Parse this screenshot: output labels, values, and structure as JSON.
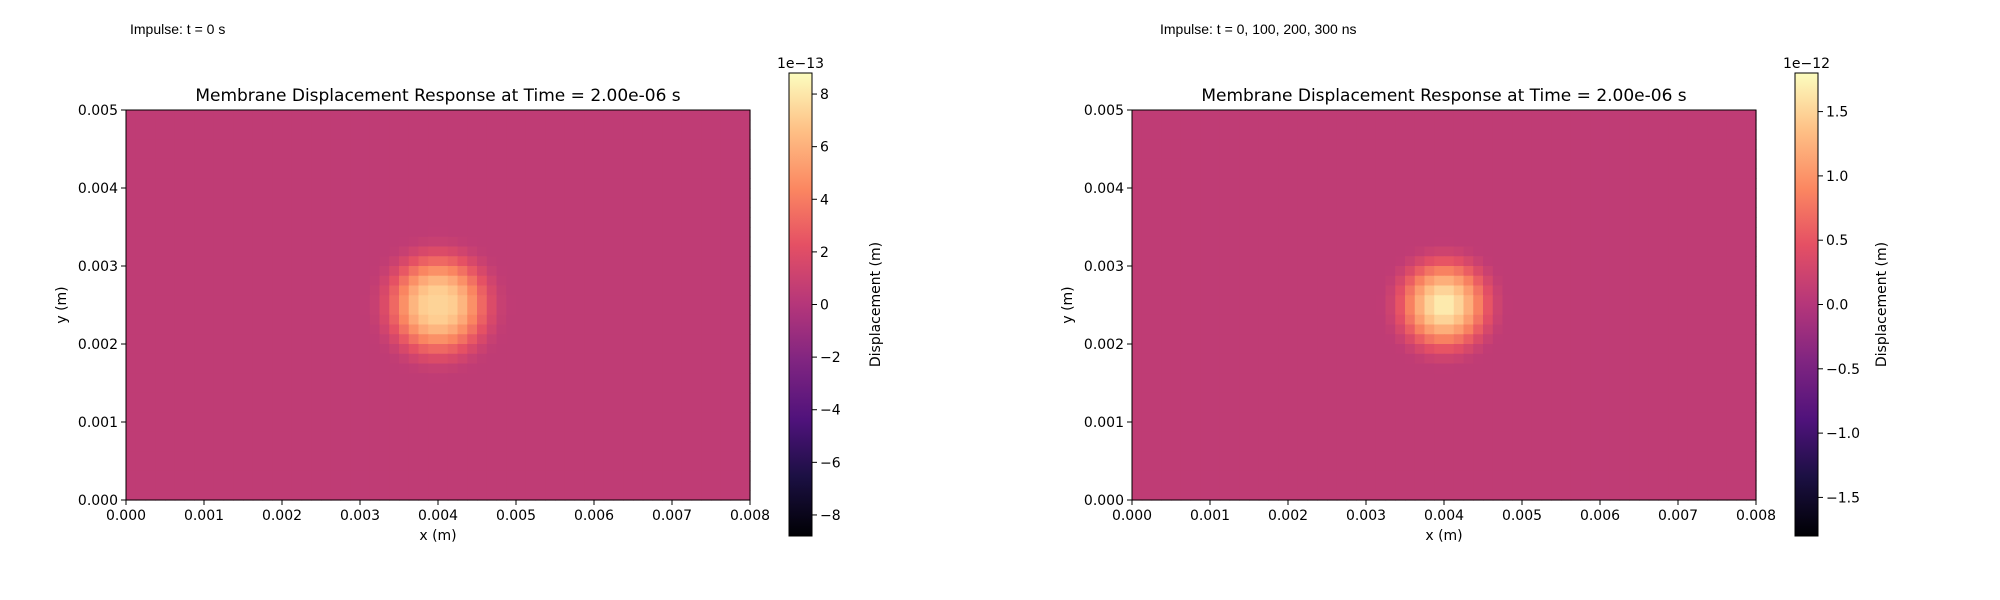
{
  "panels": [
    {
      "label": "Impulse: t = 0 s"
    },
    {
      "label": "Impulse: t = 0, 100, 200, 300 ns"
    }
  ],
  "chart_data": [
    {
      "type": "heatmap",
      "title": "Membrane Displacement Response at Time = 2.00e-06 s",
      "xlabel": "x (m)",
      "ylabel": "y (m)",
      "xlim": [
        0,
        0.008
      ],
      "ylim": [
        0,
        0.005
      ],
      "x_ticks": [
        "0.000",
        "0.001",
        "0.002",
        "0.003",
        "0.004",
        "0.005",
        "0.006",
        "0.007",
        "0.008"
      ],
      "y_ticks": [
        "0.000",
        "0.001",
        "0.002",
        "0.003",
        "0.004",
        "0.005"
      ],
      "grid": false,
      "colormap": "magma",
      "colorbar": {
        "label": "Displacement (m)",
        "offset_label": "1e−13",
        "range": [
          -8.8,
          8.8
        ],
        "ticks": [
          -8,
          -6,
          -4,
          -2,
          0,
          2,
          4,
          6,
          8
        ],
        "tick_labels": [
          "−8",
          "−6",
          "−4",
          "−2",
          "0",
          "2",
          "4",
          "6",
          "8"
        ]
      },
      "field": {
        "background": 0.5,
        "peak_center": [
          0.004,
          0.0025
        ],
        "peak_radius": 0.00095,
        "peak_value": 8.2,
        "center_dip": true
      }
    },
    {
      "type": "heatmap",
      "title": "Membrane Displacement Response at Time = 2.00e-06 s",
      "xlabel": "x (m)",
      "ylabel": "y (m)",
      "xlim": [
        0,
        0.008
      ],
      "ylim": [
        0,
        0.005
      ],
      "x_ticks": [
        "0.000",
        "0.001",
        "0.002",
        "0.003",
        "0.004",
        "0.005",
        "0.006",
        "0.007",
        "0.008"
      ],
      "y_ticks": [
        "0.000",
        "0.001",
        "0.002",
        "0.003",
        "0.004",
        "0.005"
      ],
      "grid": false,
      "colormap": "magma",
      "colorbar": {
        "label": "Displacement (m)",
        "offset_label": "1e−12",
        "range": [
          -1.8,
          1.8
        ],
        "ticks": [
          -1.5,
          -1.0,
          -0.5,
          0.0,
          0.5,
          1.0,
          1.5
        ],
        "tick_labels": [
          "−1.5",
          "−1.0",
          "−0.5",
          "0.0",
          "0.5",
          "1.0",
          "1.5"
        ]
      },
      "field": {
        "background": 0.1,
        "peak_center": [
          0.004,
          0.0025
        ],
        "peak_radius": 0.00085,
        "peak_value": 1.7,
        "center_dip": false
      }
    }
  ]
}
